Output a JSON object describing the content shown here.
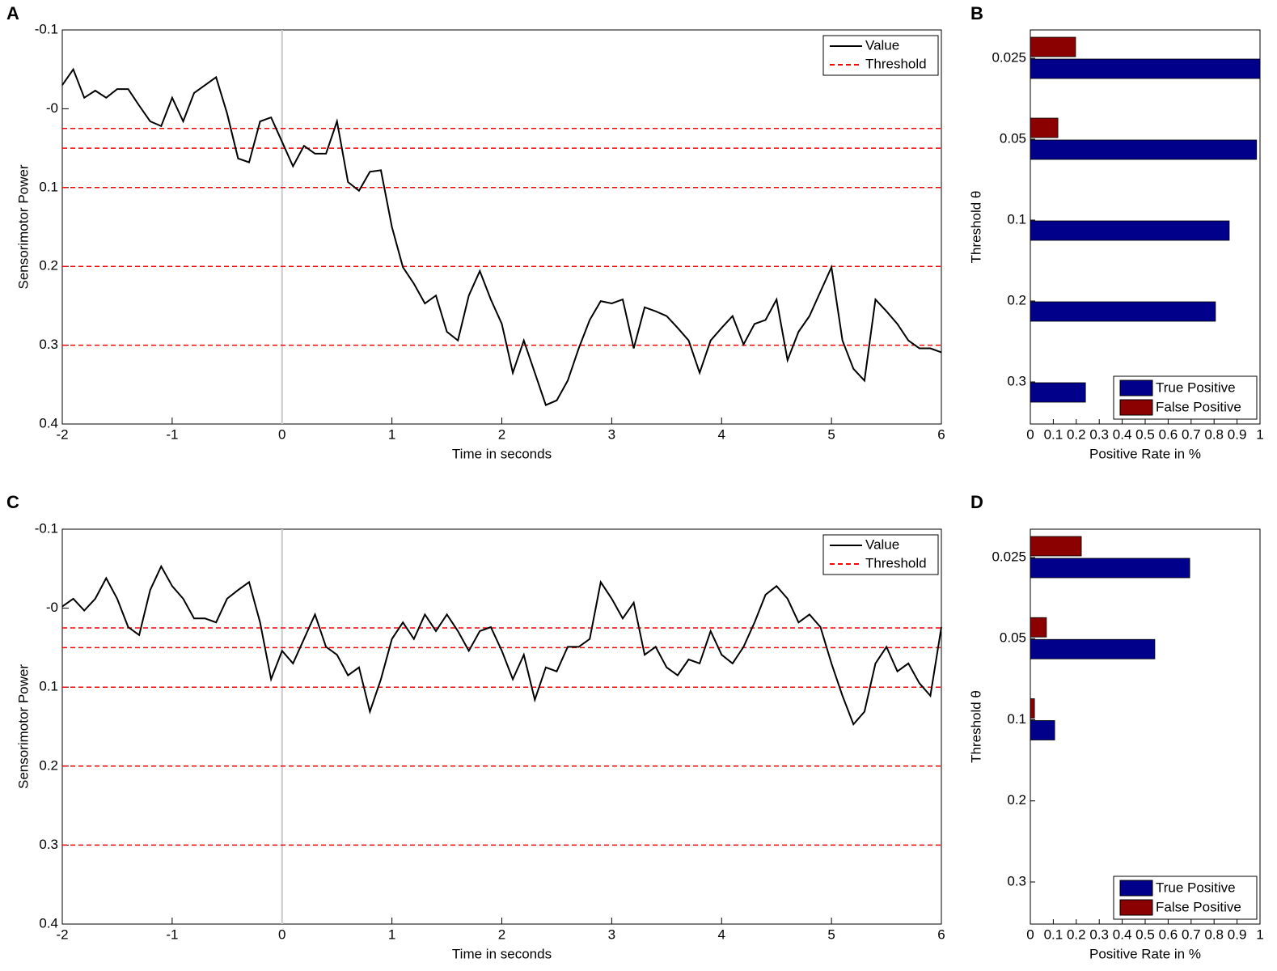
{
  "chart_data": [
    {
      "type": "line",
      "panel_label": "A",
      "xlabel": "Time in seconds",
      "ylabel": "Sensorimotor Power",
      "x": [
        -2,
        -1.9,
        -1.8,
        -1.7,
        -1.6,
        -1.5,
        -1.4,
        -1.3,
        -1.2,
        -1.1,
        -1,
        -0.9,
        -0.8,
        -0.7,
        -0.6,
        -0.5,
        -0.4,
        -0.3,
        -0.2,
        -0.1,
        0,
        0.1,
        0.2,
        0.3,
        0.4,
        0.5,
        0.6,
        0.7,
        0.8,
        0.9,
        1,
        1.1,
        1.2,
        1.3,
        1.4,
        1.5,
        1.6,
        1.7,
        1.8,
        1.9,
        2,
        2.1,
        2.2,
        2.3,
        2.4,
        2.5,
        2.6,
        2.7,
        2.8,
        2.9,
        3,
        3.1,
        3.2,
        3.3,
        3.4,
        3.5,
        3.6,
        3.7,
        3.8,
        3.9,
        4,
        4.1,
        4.2,
        4.3,
        4.4,
        4.5,
        4.6,
        4.7,
        4.8,
        4.9,
        5,
        5.1,
        5.2,
        5.3,
        5.4,
        5.5,
        5.6,
        5.7,
        5.8,
        5.9,
        6
      ],
      "series": [
        {
          "name": "Value",
          "color": "#000000",
          "values": [
            -0.03,
            -0.05,
            -0.014,
            -0.023,
            -0.014,
            -0.025,
            -0.025,
            -0.004,
            0.016,
            0.022,
            -0.014,
            0.016,
            -0.02,
            -0.03,
            -0.04,
            0.006,
            0.063,
            0.068,
            0.016,
            0.011,
            0.042,
            0.073,
            0.047,
            0.057,
            0.057,
            0.016,
            0.093,
            0.104,
            0.08,
            0.078,
            0.15,
            0.201,
            0.222,
            0.247,
            0.237,
            0.283,
            0.294,
            0.237,
            0.206,
            0.242,
            0.273,
            0.335,
            0.294,
            0.335,
            0.376,
            0.37,
            0.345,
            0.304,
            0.268,
            0.244,
            0.247,
            0.242,
            0.304,
            0.252,
            0.257,
            0.263,
            0.278,
            0.294,
            0.335,
            0.294,
            0.278,
            0.263,
            0.299,
            0.273,
            0.268,
            0.242,
            0.319,
            0.283,
            0.263,
            0.232,
            0.201,
            0.294,
            0.33,
            0.345,
            0.242,
            0.257,
            0.273,
            0.294,
            0.304,
            0.304,
            0.309
          ]
        }
      ],
      "thresholds": {
        "name": "Threshold",
        "color": "#ff0000",
        "values": [
          0.025,
          0.05,
          0.1,
          0.2,
          0.3
        ]
      },
      "vline": 0,
      "xlim": [
        -2,
        6
      ],
      "xticks": [
        -2,
        -1,
        0,
        1,
        2,
        3,
        4,
        5,
        6
      ],
      "ylim": [
        -0.1,
        0.4
      ],
      "yticks": [
        -0.1,
        {
          "value": 0,
          "label": "-0"
        },
        0.1,
        0.2,
        0.3,
        0.4
      ],
      "y_inverted": true,
      "legend": "upper right"
    },
    {
      "type": "barh",
      "panel_label": "B",
      "xlabel": "Positive Rate in %",
      "ylabel": "Threshold θ",
      "categories": [
        "0.025",
        "0.05",
        "0.1",
        "0.2",
        "0.3"
      ],
      "series": [
        {
          "name": "True Positive",
          "color": "#00008b",
          "values": [
            1.0,
            0.985,
            0.866,
            0.806,
            0.24
          ]
        },
        {
          "name": "False Positive",
          "color": "#8b0000",
          "values": [
            0.197,
            0.12,
            0,
            0,
            0
          ]
        }
      ],
      "xlim": [
        0,
        1
      ],
      "xticks": [
        0,
        0.1,
        0.2,
        0.3,
        0.4,
        0.5,
        0.6,
        0.7,
        0.8,
        0.9,
        1
      ],
      "legend": "lower right"
    },
    {
      "type": "line",
      "panel_label": "C",
      "xlabel": "Time in seconds",
      "ylabel": "Sensorimotor Power",
      "x": [
        -2,
        -1.9,
        -1.8,
        -1.7,
        -1.6,
        -1.5,
        -1.4,
        -1.3,
        -1.2,
        -1.1,
        -1,
        -0.9,
        -0.8,
        -0.7,
        -0.6,
        -0.5,
        -0.4,
        -0.3,
        -0.2,
        -0.1,
        0,
        0.1,
        0.2,
        0.3,
        0.4,
        0.5,
        0.6,
        0.7,
        0.8,
        0.9,
        1,
        1.1,
        1.2,
        1.3,
        1.4,
        1.5,
        1.6,
        1.7,
        1.8,
        1.9,
        2,
        2.1,
        2.2,
        2.3,
        2.4,
        2.5,
        2.6,
        2.7,
        2.8,
        2.9,
        3,
        3.1,
        3.2,
        3.3,
        3.4,
        3.5,
        3.6,
        3.7,
        3.8,
        3.9,
        4,
        4.1,
        4.2,
        4.3,
        4.4,
        4.5,
        4.6,
        4.7,
        4.8,
        4.9,
        5,
        5.1,
        5.2,
        5.3,
        5.4,
        5.5,
        5.6,
        5.7,
        5.8,
        5.9,
        6
      ],
      "series": [
        {
          "name": "Value",
          "color": "#000000",
          "values": [
            -0.002,
            -0.012,
            0.003,
            -0.012,
            -0.038,
            -0.012,
            0.024,
            0.034,
            -0.023,
            -0.053,
            -0.028,
            -0.012,
            0.013,
            0.013,
            0.018,
            -0.012,
            -0.023,
            -0.033,
            0.018,
            0.09,
            0.054,
            0.07,
            0.039,
            0.008,
            0.049,
            0.059,
            0.085,
            0.075,
            0.131,
            0.09,
            0.039,
            0.018,
            0.039,
            0.008,
            0.029,
            0.008,
            0.029,
            0.054,
            0.029,
            0.024,
            0.054,
            0.09,
            0.059,
            0.116,
            0.075,
            0.08,
            0.049,
            0.049,
            0.039,
            -0.033,
            -0.012,
            0.013,
            -0.007,
            0.059,
            0.049,
            0.075,
            0.085,
            0.065,
            0.07,
            0.029,
            0.059,
            0.07,
            0.049,
            0.018,
            -0.017,
            -0.028,
            -0.012,
            0.018,
            0.008,
            0.024,
            0.07,
            0.111,
            0.147,
            0.131,
            0.07,
            0.049,
            0.08,
            0.07,
            0.095,
            0.111,
            0.024
          ]
        }
      ],
      "thresholds": {
        "name": "Threshold",
        "color": "#ff0000",
        "values": [
          0.025,
          0.05,
          0.1,
          0.2,
          0.3
        ]
      },
      "vline": 0,
      "xlim": [
        -2,
        6
      ],
      "xticks": [
        -2,
        -1,
        0,
        1,
        2,
        3,
        4,
        5,
        6
      ],
      "ylim": [
        -0.1,
        0.4
      ],
      "yticks": [
        -0.1,
        {
          "value": 0,
          "label": "-0"
        },
        0.1,
        0.2,
        0.3,
        0.4
      ],
      "y_inverted": true,
      "legend": "upper right"
    },
    {
      "type": "barh",
      "panel_label": "D",
      "xlabel": "Positive Rate in %",
      "ylabel": "Threshold θ",
      "categories": [
        "0.025",
        "0.05",
        "0.1",
        "0.2",
        "0.3"
      ],
      "series": [
        {
          "name": "True Positive",
          "color": "#00008b",
          "values": [
            0.694,
            0.542,
            0.106,
            0,
            0
          ]
        },
        {
          "name": "False Positive",
          "color": "#8b0000",
          "values": [
            0.222,
            0.07,
            0.018,
            0,
            0
          ]
        }
      ],
      "xlim": [
        0,
        1
      ],
      "xticks": [
        0,
        0.1,
        0.2,
        0.3,
        0.4,
        0.5,
        0.6,
        0.7,
        0.8,
        0.9,
        1
      ],
      "legend": "lower right"
    }
  ]
}
